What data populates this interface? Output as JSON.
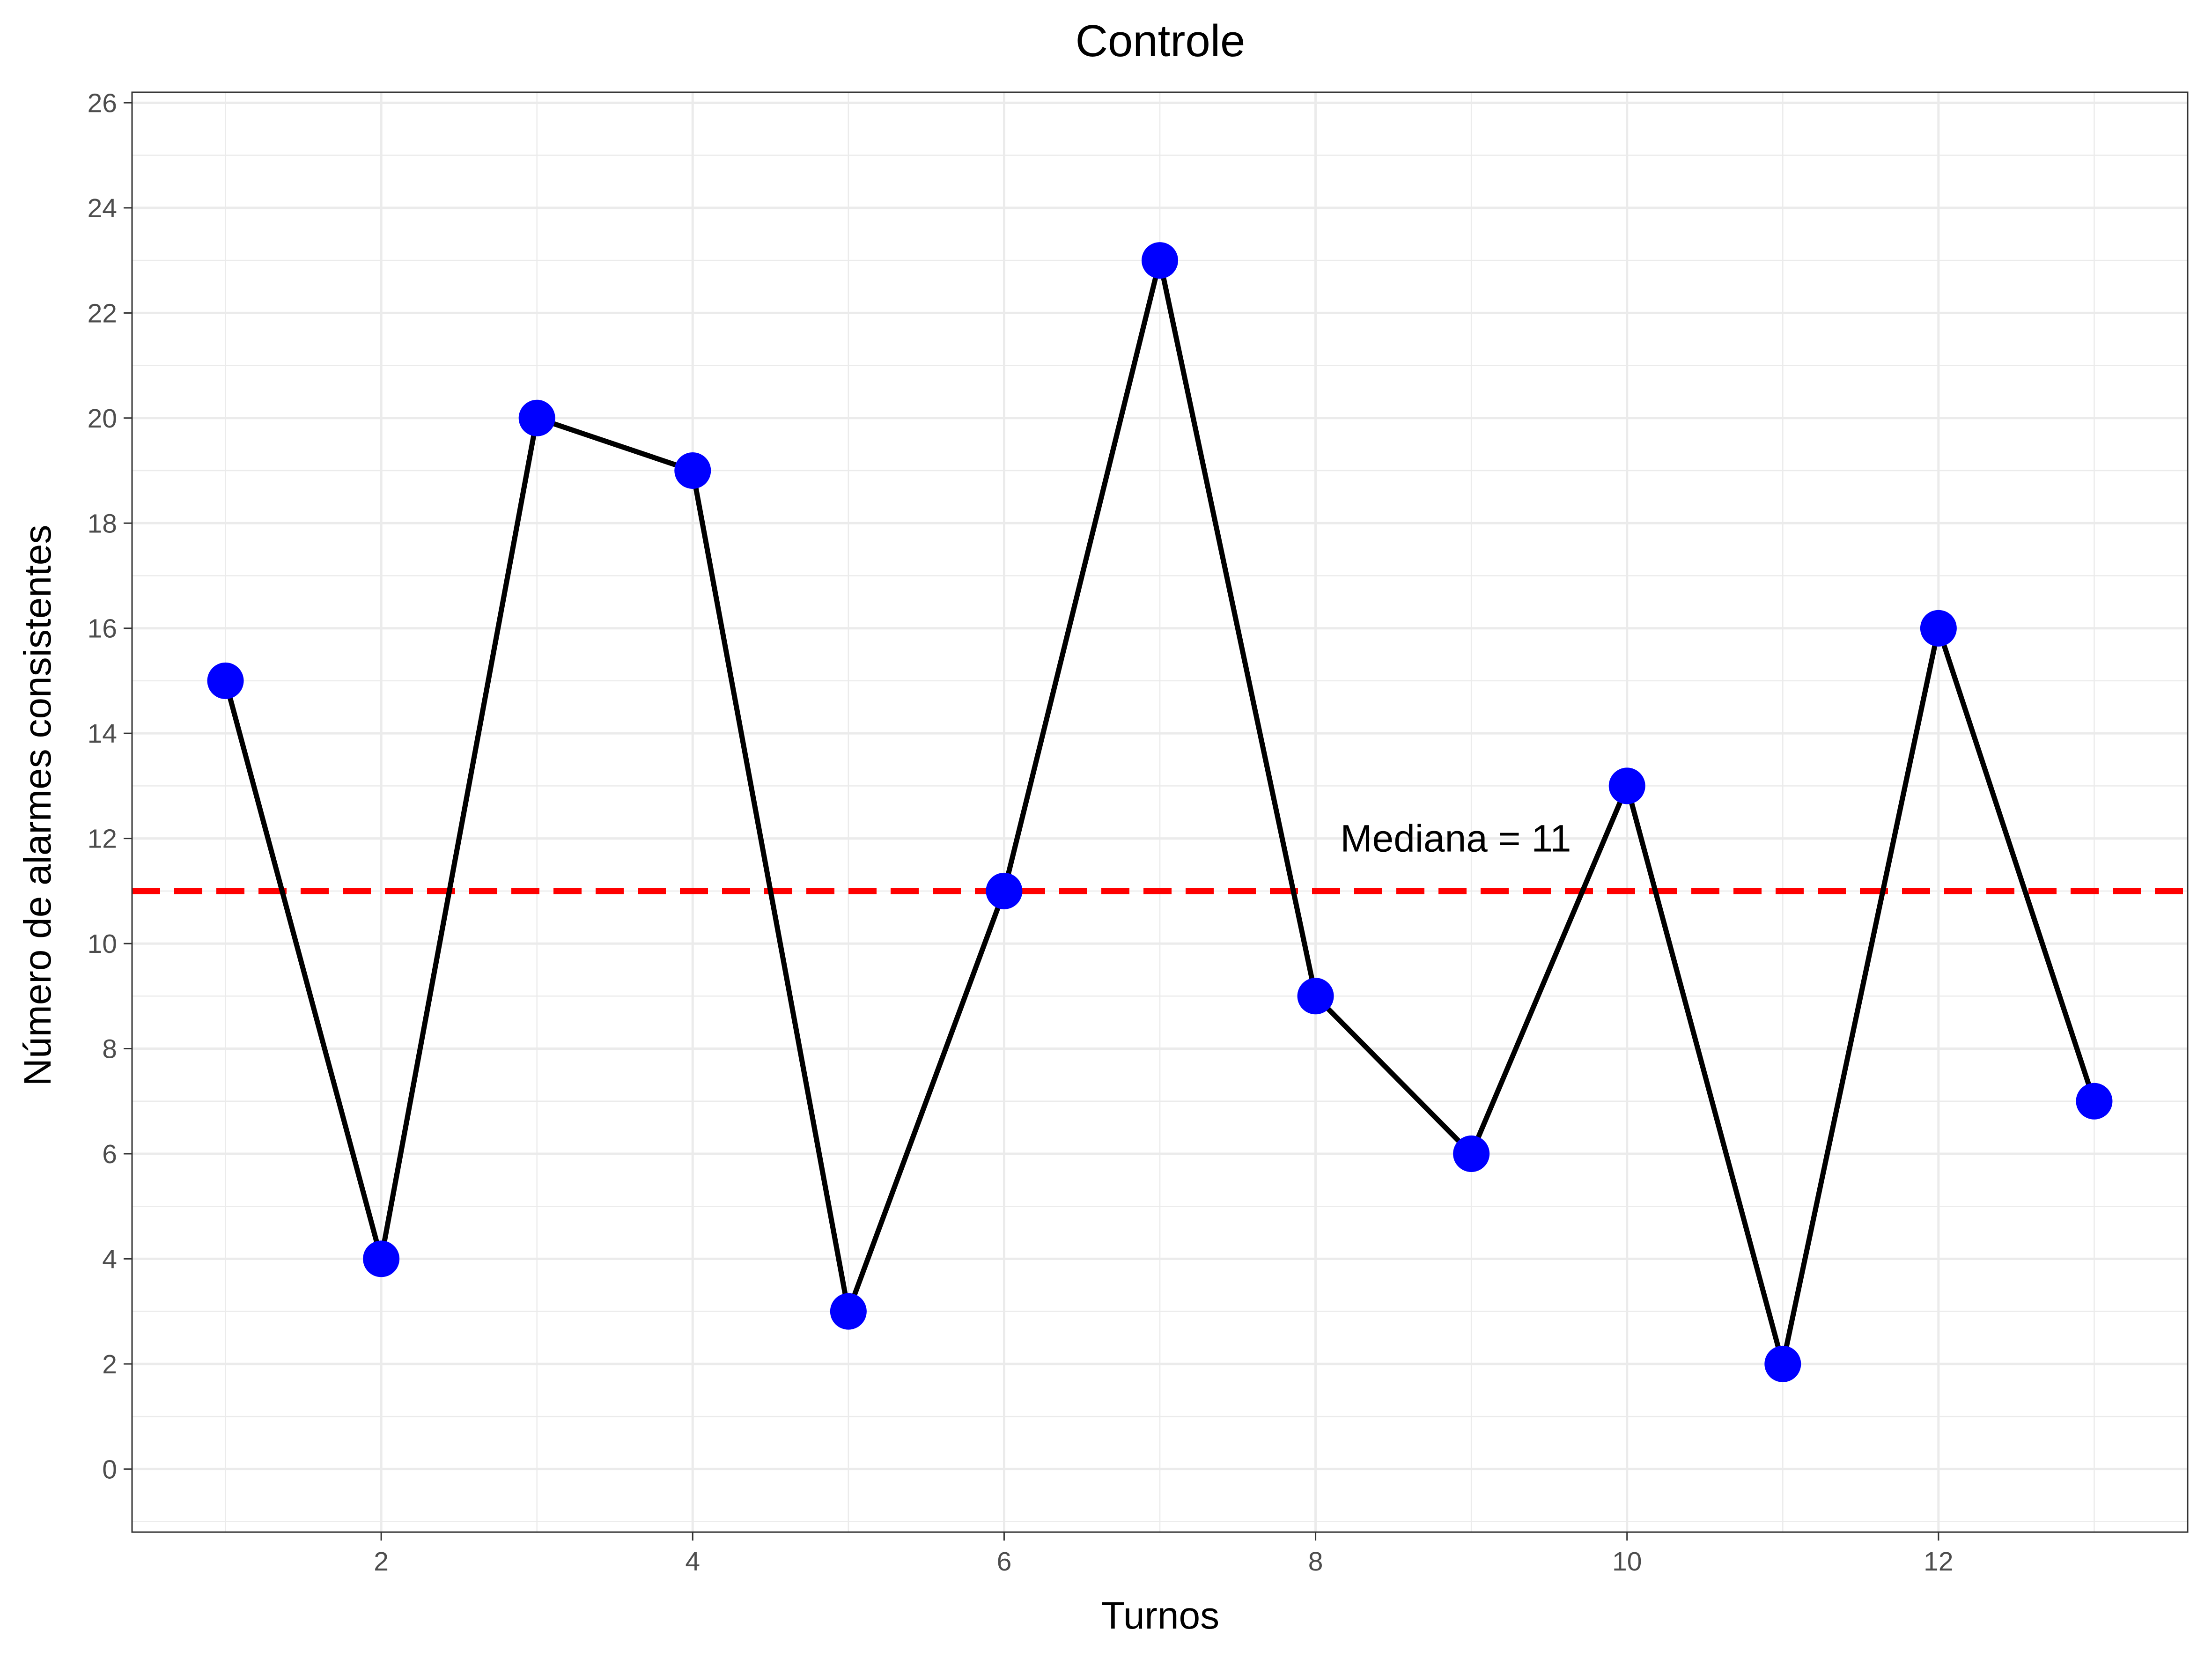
{
  "chart_data": {
    "type": "line",
    "title": "Controle",
    "xlabel": "Turnos",
    "ylabel": "Número de alarmes consistentes",
    "x": [
      1,
      2,
      3,
      4,
      5,
      6,
      7,
      8,
      9,
      10,
      11,
      12,
      13
    ],
    "series": [
      {
        "values": [
          15,
          4,
          20,
          19,
          3,
          11,
          23,
          9,
          6,
          13,
          2,
          16,
          7
        ]
      }
    ],
    "xlim": [
      0.4,
      13.6
    ],
    "ylim": [
      -1.2,
      26.2
    ],
    "xticks": [
      2,
      4,
      6,
      8,
      10,
      12
    ],
    "yticks": [
      0,
      2,
      4,
      6,
      8,
      10,
      12,
      14,
      16,
      18,
      20,
      22,
      24,
      26
    ],
    "reference_line": {
      "value": 11,
      "label": "Mediana = 11",
      "label_x": 8.9,
      "label_y": 12,
      "color": "#ff0000",
      "style": "dashed"
    },
    "line_color": "#000000",
    "point_color": "#0000ff",
    "grid": true,
    "legend": "none"
  }
}
